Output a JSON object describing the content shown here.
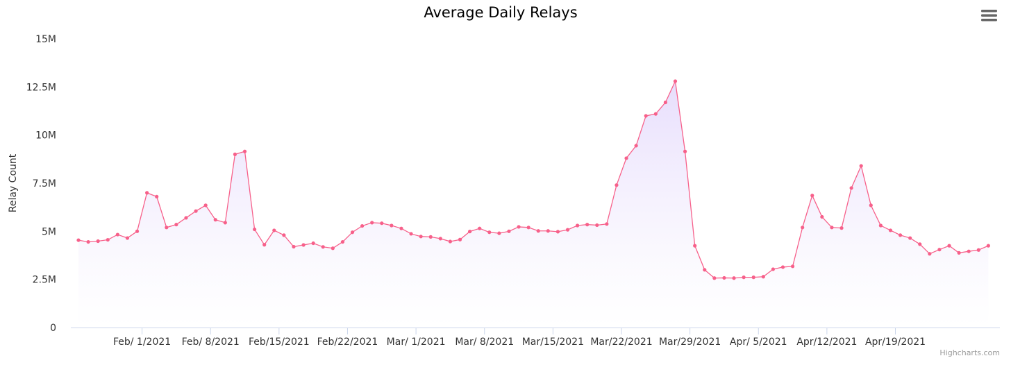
{
  "chart_data": {
    "type": "area",
    "title": "Average Daily Relays",
    "ylabel": "Relay Count",
    "xlabel": "",
    "ylim": [
      0,
      15000000
    ],
    "yticks": [
      {
        "value": 0,
        "label": "0"
      },
      {
        "value": 2500000,
        "label": "2.5M"
      },
      {
        "value": 5000000,
        "label": "5M"
      },
      {
        "value": 7500000,
        "label": "7.5M"
      },
      {
        "value": 10000000,
        "label": "10M"
      },
      {
        "value": 12500000,
        "label": "12.5M"
      },
      {
        "value": 15000000,
        "label": "15M"
      }
    ],
    "xticks": [
      {
        "label": "Feb/ 1/2021",
        "index": 6.5
      },
      {
        "label": "Feb/ 8/2021",
        "index": 13.5
      },
      {
        "label": "Feb/15/2021",
        "index": 20.5
      },
      {
        "label": "Feb/22/2021",
        "index": 27.5
      },
      {
        "label": "Mar/ 1/2021",
        "index": 34.5
      },
      {
        "label": "Mar/ 8/2021",
        "index": 41.5
      },
      {
        "label": "Mar/15/2021",
        "index": 48.5
      },
      {
        "label": "Mar/22/2021",
        "index": 55.5
      },
      {
        "label": "Mar/29/2021",
        "index": 62.5
      },
      {
        "label": "Apr/ 5/2021",
        "index": 69.5
      },
      {
        "label": "Apr/12/2021",
        "index": 76.5
      },
      {
        "label": "Apr/19/2021",
        "index": 83.5
      }
    ],
    "grid": false,
    "legend": "none",
    "color": "#f7608a",
    "fill_color": "#e8e0fb",
    "series": [
      {
        "values": [
          4540000,
          4450000,
          4490000,
          4560000,
          4830000,
          4650000,
          5000000,
          7000000,
          6800000,
          5200000,
          5350000,
          5700000,
          6050000,
          6350000,
          5600000,
          5450000,
          9000000,
          9150000,
          5100000,
          4300000,
          5050000,
          4800000,
          4200000,
          4290000,
          4380000,
          4190000,
          4120000,
          4450000,
          4950000,
          5280000,
          5450000,
          5420000,
          5300000,
          5150000,
          4870000,
          4730000,
          4710000,
          4620000,
          4470000,
          4570000,
          4990000,
          5150000,
          4950000,
          4900000,
          5000000,
          5230000,
          5200000,
          5020000,
          5020000,
          4980000,
          5080000,
          5300000,
          5350000,
          5320000,
          5380000,
          7400000,
          8800000,
          9450000,
          11000000,
          11100000,
          11700000,
          12800000,
          9150000,
          4250000,
          3000000,
          2570000,
          2580000,
          2570000,
          2610000,
          2610000,
          2640000,
          3030000,
          3140000,
          3180000,
          5200000,
          6860000,
          5750000,
          5200000,
          5170000,
          7250000,
          8400000,
          6350000,
          5300000,
          5050000,
          4800000,
          4650000,
          4330000,
          3830000,
          4050000,
          4250000,
          3880000,
          3960000,
          4030000,
          4250000
        ]
      }
    ]
  },
  "ui": {
    "menu_icon": "hamburger-menu-icon",
    "credits": "Highcharts.com"
  }
}
